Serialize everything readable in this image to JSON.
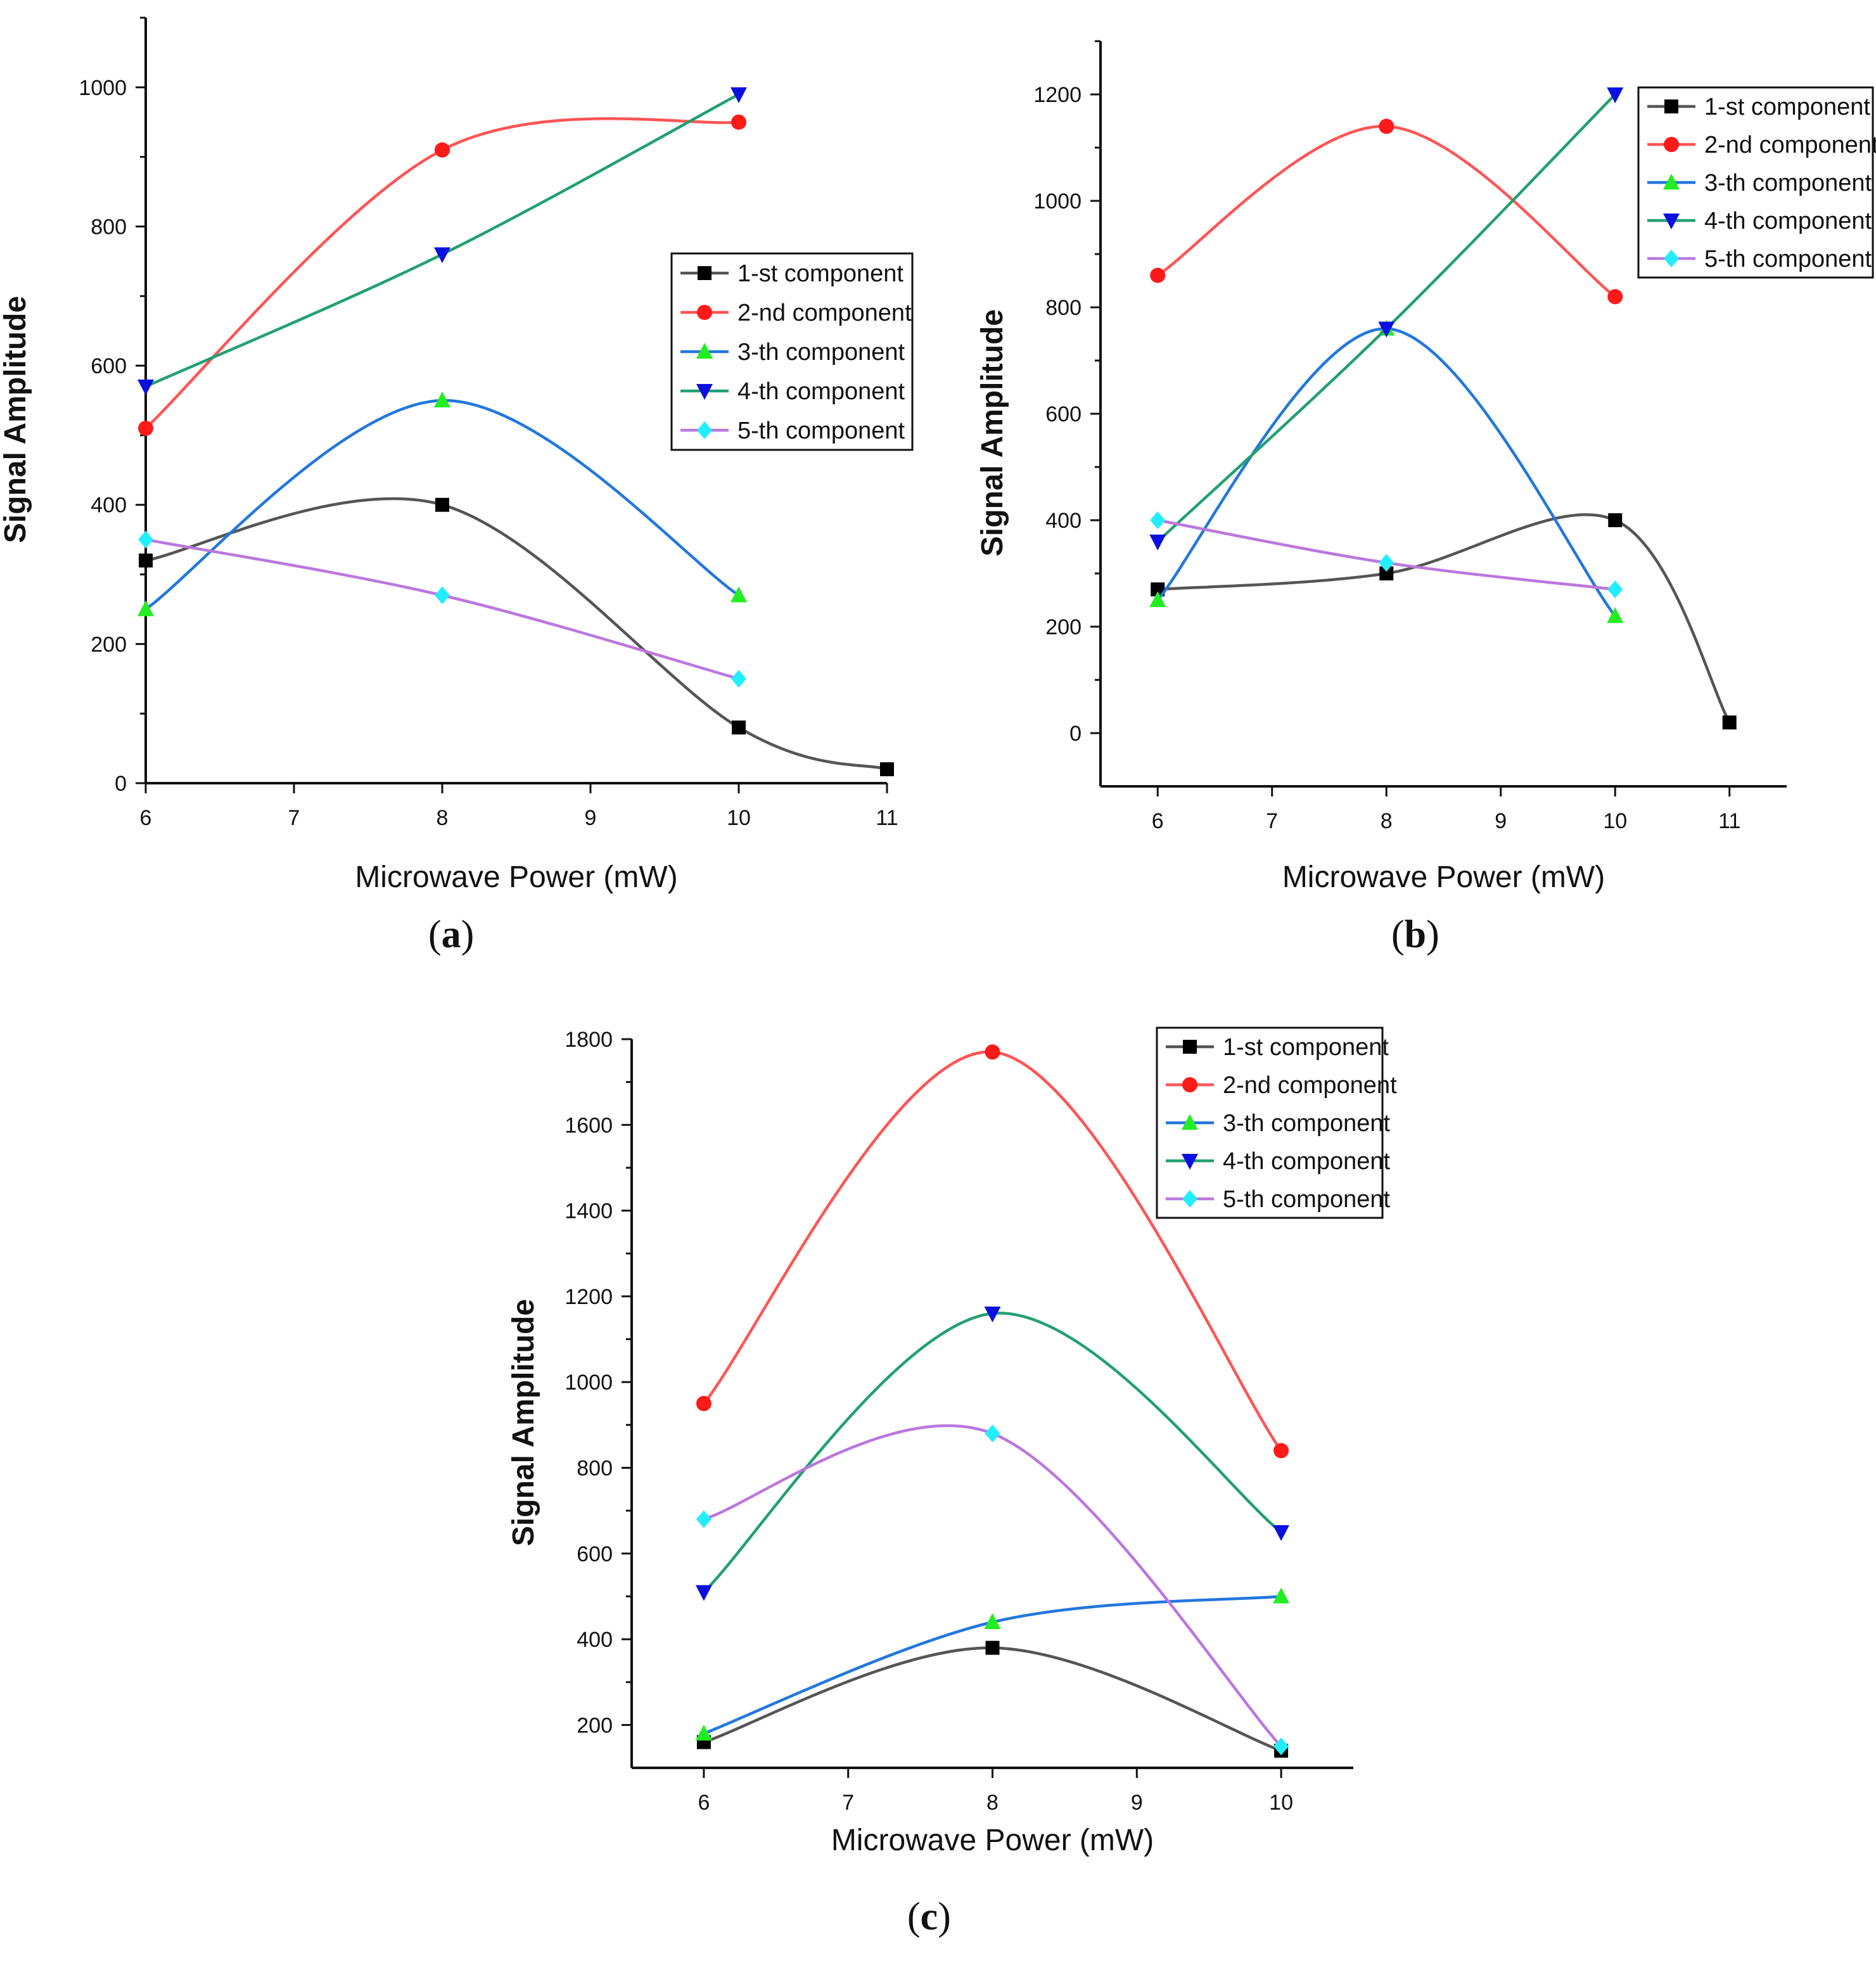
{
  "series_styles": [
    {
      "name": "1-st component",
      "line_color": "#555555",
      "marker_color": "#000000",
      "marker": "square"
    },
    {
      "name": "2-nd component",
      "line_color": "#ff5555",
      "marker_color": "#ff1a1a",
      "marker": "circle"
    },
    {
      "name": "3-th component",
      "line_color": "#2277dd",
      "marker_color": "#22ee22",
      "marker": "triangle-up"
    },
    {
      "name": "4-th component",
      "line_color": "#22a070",
      "marker_color": "#0a10e0",
      "marker": "triangle-down"
    },
    {
      "name": "5-th component",
      "line_color": "#bb77dd",
      "marker_color": "#22eeff",
      "marker": "diamond"
    }
  ],
  "chart_data": [
    {
      "id": "a",
      "type": "line",
      "caption": "a",
      "title": "",
      "xlabel": "Microwave Power (mW)",
      "ylabel": "Signal Amplitude",
      "xlim": [
        6,
        11
      ],
      "ylim": [
        0,
        1100
      ],
      "xticks": [
        6,
        7,
        8,
        9,
        10,
        11
      ],
      "yticks": [
        0,
        200,
        400,
        600,
        800,
        1000
      ],
      "legend_position": "center-right",
      "series": [
        {
          "name": "1-st component",
          "x": [
            6,
            8,
            10,
            11
          ],
          "y": [
            320,
            400,
            80,
            20
          ]
        },
        {
          "name": "2-nd component",
          "x": [
            6,
            8,
            10
          ],
          "y": [
            510,
            910,
            950
          ]
        },
        {
          "name": "3-th component",
          "x": [
            6,
            8,
            10
          ],
          "y": [
            250,
            550,
            270
          ]
        },
        {
          "name": "4-th component",
          "x": [
            6,
            8,
            10
          ],
          "y": [
            570,
            760,
            990
          ]
        },
        {
          "name": "5-th component",
          "x": [
            6,
            8,
            10
          ],
          "y": [
            350,
            270,
            150
          ]
        }
      ]
    },
    {
      "id": "b",
      "type": "line",
      "caption": "b",
      "title": "",
      "xlabel": "Microwave Power (mW)",
      "ylabel": "Signal Amplitude",
      "xlim": [
        5.5,
        11.5
      ],
      "ylim": [
        -100,
        1300
      ],
      "xticks": [
        6,
        7,
        8,
        9,
        10,
        11
      ],
      "yticks": [
        0,
        200,
        400,
        600,
        800,
        1000,
        1200
      ],
      "legend_position": "top-right",
      "series": [
        {
          "name": "1-st component",
          "x": [
            6,
            8,
            10,
            11
          ],
          "y": [
            270,
            300,
            400,
            20
          ]
        },
        {
          "name": "2-nd component",
          "x": [
            6,
            8,
            10
          ],
          "y": [
            860,
            1140,
            820
          ]
        },
        {
          "name": "3-th component",
          "x": [
            6,
            8,
            10
          ],
          "y": [
            250,
            760,
            220
          ]
        },
        {
          "name": "4-th component",
          "x": [
            6,
            8,
            10
          ],
          "y": [
            360,
            760,
            1200
          ]
        },
        {
          "name": "5-th component",
          "x": [
            6,
            8,
            10
          ],
          "y": [
            400,
            320,
            270
          ]
        }
      ]
    },
    {
      "id": "c",
      "type": "line",
      "caption": "c",
      "title": "",
      "xlabel": "Microwave Power (mW)",
      "ylabel": "Signal Amplitude",
      "xlim": [
        5.5,
        10.5
      ],
      "ylim": [
        100,
        1800
      ],
      "xticks": [
        6,
        7,
        8,
        9,
        10
      ],
      "yticks": [
        200,
        400,
        600,
        800,
        1000,
        1200,
        1400,
        1600,
        1800
      ],
      "legend_position": "top-right",
      "series": [
        {
          "name": "1-st component",
          "x": [
            6,
            8,
            10
          ],
          "y": [
            160,
            380,
            140
          ]
        },
        {
          "name": "2-nd component",
          "x": [
            6,
            8,
            10
          ],
          "y": [
            950,
            1770,
            840
          ]
        },
        {
          "name": "3-th component",
          "x": [
            6,
            8,
            10
          ],
          "y": [
            180,
            440,
            500
          ]
        },
        {
          "name": "4-th component",
          "x": [
            6,
            8,
            10
          ],
          "y": [
            510,
            1160,
            650
          ]
        },
        {
          "name": "5-th component",
          "x": [
            6,
            8,
            10
          ],
          "y": [
            680,
            880,
            150
          ]
        }
      ]
    }
  ]
}
